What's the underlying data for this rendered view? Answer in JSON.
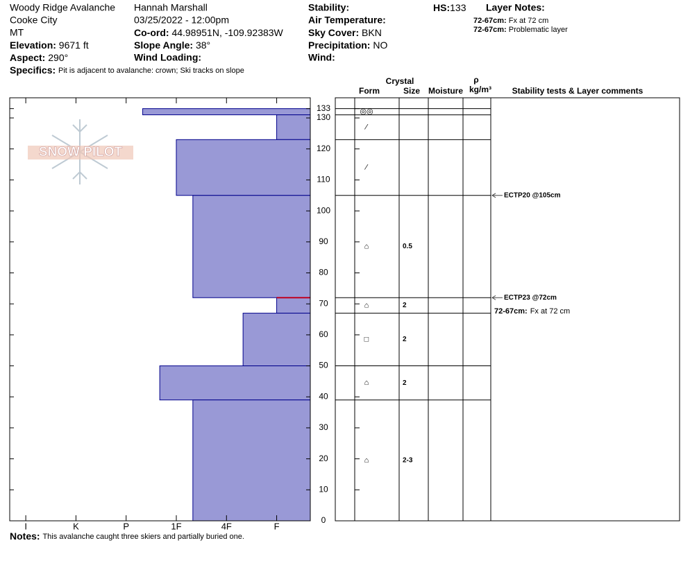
{
  "header": {
    "location": "Woody Ridge Avalanche",
    "city": "Cooke City",
    "state": "MT",
    "elevation_label": "Elevation:",
    "elevation": "9671 ft",
    "aspect_label": "Aspect:",
    "aspect": "290°",
    "observer": "Hannah Marshall",
    "datetime": "03/25/2022 - 12:00pm",
    "coord_label": "Co-ord:",
    "coord": "44.98951N, -109.92383W",
    "slope_label": "Slope Angle:",
    "slope": "38°",
    "wind_loading_label": "Wind Loading:",
    "stability_label": "Stability:",
    "air_temp_label": "Air Temperature:",
    "sky_label": "Sky Cover:",
    "sky": "BKN",
    "precip_label": "Precipitation:",
    "precip": "NO",
    "wind_label": "Wind:",
    "hs_label": "HS:",
    "hs": 133,
    "layer_notes_label": "Layer Notes:",
    "layer_notes": [
      {
        "depth": "72-67cm:",
        "text": "Fx at 72 cm"
      },
      {
        "depth": "72-67cm:",
        "text": "Problematic layer"
      }
    ],
    "specifics_label": "Specifics:",
    "specifics": "Pit is adjacent to avalanche: crown; Ski tracks on slope"
  },
  "logo": "SNOW PILOT",
  "notes": {
    "label": "Notes:",
    "text": "This avalanche caught three skiers and partially buried one."
  },
  "chart_data": {
    "type": "bar",
    "top": [
      133,
      131,
      123,
      105,
      72,
      67,
      50,
      39
    ],
    "bottom": [
      131,
      123,
      105,
      72,
      67,
      50,
      39,
      0
    ],
    "values": [
      3.67,
      1,
      3,
      2.67,
      1,
      1.67,
      3.33,
      2.67
    ],
    "flagged": [
      false,
      false,
      false,
      false,
      true,
      false,
      false,
      false
    ],
    "color": "#9999d6",
    "edge_color": "#00008b",
    "flag_color": "#c00020",
    "xlim": [
      6.32,
      0.33
    ],
    "xticks": [
      {
        "value": 6,
        "label": "I"
      },
      {
        "value": 5,
        "label": "K"
      },
      {
        "value": 4,
        "label": "P"
      },
      {
        "value": 3,
        "label": "1F"
      },
      {
        "value": 2,
        "label": "4F"
      },
      {
        "value": 1,
        "label": "F"
      }
    ],
    "ylim": [
      0,
      136.5
    ],
    "yticks": [
      0,
      10,
      20,
      30,
      40,
      50,
      60,
      70,
      80,
      90,
      100,
      110,
      120,
      130,
      133
    ],
    "table": {
      "crystal": "Crystal",
      "form": "Form",
      "size": "Size",
      "moisture": "Moisture",
      "rho": "ρ",
      "density_unit": "kg/m³",
      "comments": "Stability tests & Layer comments",
      "forms": [
        "◎◎",
        "⁄",
        "⁄",
        "⌂",
        "⌂",
        "□",
        "⌂",
        "⌂"
      ],
      "sizes": [
        null,
        null,
        null,
        "0.5",
        "2",
        "2",
        "2",
        "2-3"
      ]
    },
    "tests": [
      {
        "depth": 105,
        "label": "ECTP20 @105cm"
      },
      {
        "depth": 72,
        "label": "ECTP23 @72cm"
      }
    ],
    "comment": {
      "depth": "72-67cm:",
      "text": "Fx at 72 cm"
    }
  }
}
